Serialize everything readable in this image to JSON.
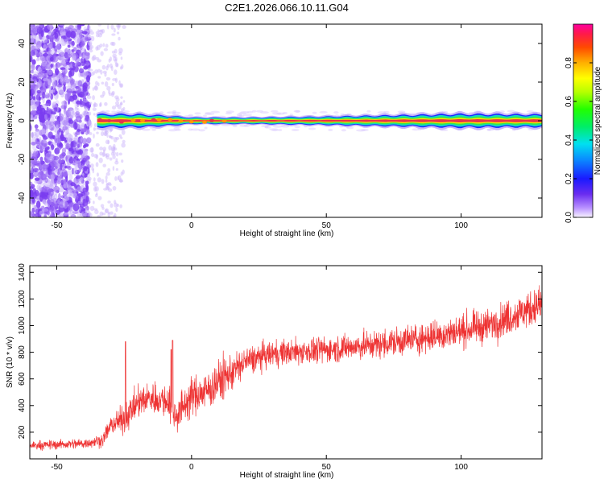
{
  "figure": {
    "title": "C2E1.2026.066.10.11.G04"
  },
  "colors": {
    "snr_line": "#ee3333",
    "speckle": "#7a3cf0",
    "signal_core": "#e8334a",
    "signal_mid": "#ffe000",
    "signal_outer": "#16d7c0",
    "signal_edge": "#1a2bff"
  },
  "chart_data": [
    {
      "id": "spectrogram",
      "type": "heatmap",
      "title": "C2E1.2026.066.10.11.G04",
      "xlabel": "Height of straight line (km)",
      "ylabel": "Frequency (Hz)",
      "xlim": [
        -60,
        130
      ],
      "ylim": [
        -50,
        50
      ],
      "xticks": [
        -50,
        0,
        50,
        100
      ],
      "yticks": [
        -40,
        -20,
        0,
        20,
        40
      ],
      "colorbar": {
        "label": "Normalized spectral amplitude",
        "range": [
          0,
          1
        ],
        "ticks": [
          0.0,
          0.2,
          0.4,
          0.6,
          0.8
        ],
        "tick_labels": [
          "0.0",
          "0.2",
          "0.4",
          "0.6",
          "0.8"
        ]
      },
      "noise_region": {
        "x_from": -60,
        "x_to": -38,
        "sparse_to": -25
      },
      "signal_track": {
        "center_hz": 0,
        "start_km": -35,
        "end_km": 130,
        "halfwidth_hz": [
          {
            "x": -35,
            "w": 2.5
          },
          {
            "x": -20,
            "w": 2.5
          },
          {
            "x": -10,
            "w": 2
          },
          {
            "x": 0,
            "w": 1.2
          },
          {
            "x": 20,
            "w": 1.2
          },
          {
            "x": 50,
            "w": 1.6
          },
          {
            "x": 80,
            "w": 2.2
          },
          {
            "x": 100,
            "w": 2.6
          },
          {
            "x": 130,
            "w": 2.4
          }
        ]
      }
    },
    {
      "id": "snr",
      "type": "line",
      "xlabel": "Height of straight line (km)",
      "ylabel": "SNR (10 * v/v)",
      "xlim": [
        -60,
        130
      ],
      "ylim": [
        0,
        1450
      ],
      "xticks": [
        -50,
        0,
        50,
        100
      ],
      "yticks": [
        200,
        400,
        600,
        800,
        1000,
        1200,
        1400
      ],
      "envelope": [
        {
          "x": -60,
          "mean": 100,
          "spread": 60
        },
        {
          "x": -40,
          "mean": 115,
          "spread": 70
        },
        {
          "x": -33,
          "mean": 140,
          "spread": 90
        },
        {
          "x": -30,
          "mean": 250,
          "spread": 130
        },
        {
          "x": -25,
          "mean": 300,
          "spread": 200
        },
        {
          "x": -20,
          "mean": 420,
          "spread": 220
        },
        {
          "x": -15,
          "mean": 460,
          "spread": 220
        },
        {
          "x": -8,
          "mean": 430,
          "spread": 250
        },
        {
          "x": -6,
          "mean": 320,
          "spread": 250
        },
        {
          "x": 0,
          "mean": 470,
          "spread": 260
        },
        {
          "x": 5,
          "mean": 500,
          "spread": 280
        },
        {
          "x": 10,
          "mean": 580,
          "spread": 300
        },
        {
          "x": 15,
          "mean": 650,
          "spread": 260
        },
        {
          "x": 20,
          "mean": 730,
          "spread": 200
        },
        {
          "x": 30,
          "mean": 790,
          "spread": 180
        },
        {
          "x": 50,
          "mean": 820,
          "spread": 180
        },
        {
          "x": 70,
          "mean": 860,
          "spread": 200
        },
        {
          "x": 90,
          "mean": 920,
          "spread": 220
        },
        {
          "x": 110,
          "mean": 1000,
          "spread": 230
        },
        {
          "x": 130,
          "mean": 1160,
          "spread": 260
        }
      ],
      "spikes": [
        {
          "x": -24.5,
          "y": 880
        },
        {
          "x": -7,
          "y": 890
        },
        {
          "x": -7.6,
          "y": 820
        }
      ]
    }
  ]
}
